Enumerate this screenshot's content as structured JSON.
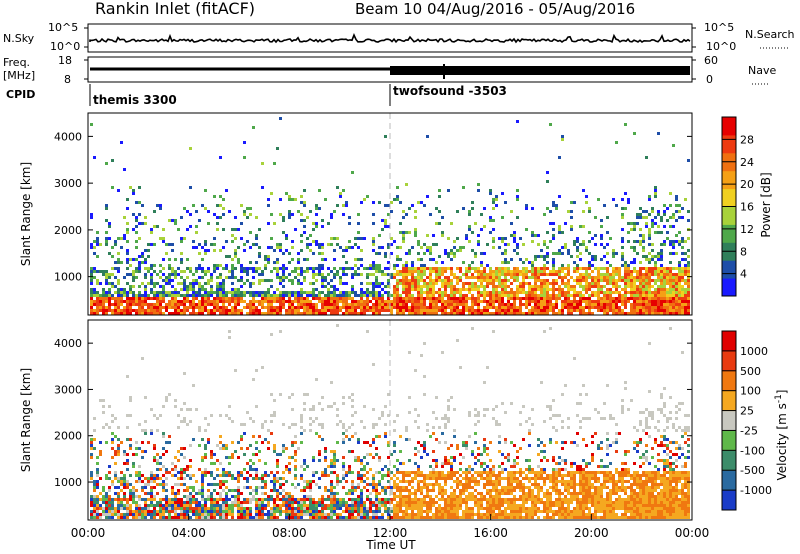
{
  "header": {
    "station": "Rankin Inlet (fitACF)",
    "beam_info": "Beam 10 04/Aug/2016 - 05/Aug/2016"
  },
  "aux_panels": {
    "nsky": {
      "label": "N.Sky",
      "tick_top": "10^5",
      "tick_bottom": "10^0"
    },
    "nsearch": {
      "label": "N.Search",
      "tick_top": "10^5",
      "tick_bottom": "10^0"
    },
    "freq": {
      "label_line1": "Freq.",
      "label_line2": "[MHz]",
      "tick_top": "18",
      "tick_bottom": "8"
    },
    "nave": {
      "label": "Nave",
      "tick_top": "60",
      "tick_bottom": "0"
    },
    "cpid": {
      "label": "CPID",
      "mode1": "themis 3300",
      "mode2": "twofsound -3503"
    }
  },
  "chart_data": [
    {
      "type": "heatmap",
      "parameter": "power",
      "ylabel": "Slant Range [km]",
      "yticks": [
        "1000",
        "2000",
        "3000",
        "4000"
      ],
      "ylim": [
        180,
        4500
      ],
      "colorbar_label": "Power [dB]",
      "colorbar_ticks": [
        "4",
        "8",
        "12",
        "16",
        "20",
        "24",
        "28"
      ],
      "colorbar_colors": [
        "#1a1aff",
        "#1e4ea8",
        "#2f7f5a",
        "#4fa84a",
        "#a8d23a",
        "#f0d020",
        "#f5a015",
        "#f07010",
        "#ee3a10",
        "#e60000"
      ]
    },
    {
      "type": "heatmap",
      "parameter": "velocity",
      "ylabel": "Slant Range [km]",
      "yticks": [
        "1000",
        "2000",
        "3000",
        "4000"
      ],
      "ylim": [
        180,
        4500
      ],
      "xlabel": "Time UT",
      "xticks": [
        "00:00",
        "04:00",
        "08:00",
        "12:00",
        "16:00",
        "20:00",
        "00:00"
      ],
      "colorbar_label": "Velocity [m s",
      "colorbar_label_sup": "-1",
      "colorbar_label_end": "]",
      "colorbar_ticks": [
        "1000",
        "500",
        "100",
        "25",
        "-25",
        "-100",
        "-500",
        "-1000"
      ],
      "colorbar_colors": [
        "#1a3cc8",
        "#2a6aa0",
        "#3c8c6a",
        "#5fb84a",
        "#c8c8c0",
        "#f5a820",
        "#f07810",
        "#e83a10",
        "#e00000"
      ]
    }
  ]
}
